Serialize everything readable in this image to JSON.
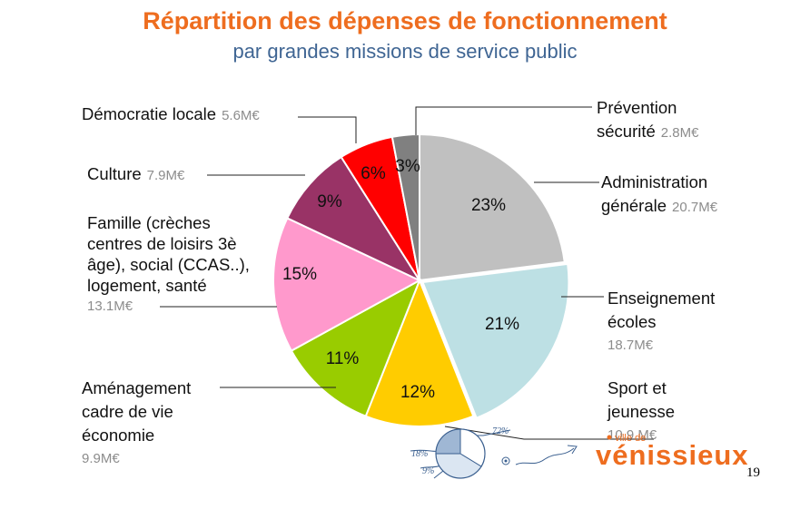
{
  "title": "Répartition des dépenses de fonctionnement",
  "subtitle": "par grandes missions de service public",
  "colors": {
    "title": "#ee6d1f",
    "subtitle": "#3f6593",
    "logo": "#ee6d1f"
  },
  "chart_data": {
    "type": "pie",
    "start_angle_deg": 0,
    "direction": "clockwise",
    "slices": [
      {
        "pct": 23,
        "pct_label": "23%",
        "color": "#c0c0c0",
        "lines": [
          "Administration",
          "générale"
        ],
        "amount": "20.7M€"
      },
      {
        "pct": 21,
        "pct_label": "21%",
        "color": "#bde0e4",
        "lines": [
          "Enseignement",
          "écoles"
        ],
        "amount": "18.7M€"
      },
      {
        "pct": 12,
        "pct_label": "12%",
        "color": "#ffcc00",
        "lines": [
          "Sport et",
          "jeunesse"
        ],
        "amount": "10.9 M€"
      },
      {
        "pct": 11,
        "pct_label": "11%",
        "color": "#99cc00",
        "lines": [
          "Aménagement",
          "cadre de vie",
          "économie"
        ],
        "amount": "9.9M€"
      },
      {
        "pct": 15,
        "pct_label": "15%",
        "color": "#ff99cc",
        "lines": [
          "Famille (crèches",
          "centres de loisirs 3è",
          "âge), social (CCAS..),",
          "logement, santé"
        ],
        "amount": "13.1M€"
      },
      {
        "pct": 9,
        "pct_label": "9%",
        "color": "#993366",
        "lines": [
          "Culture"
        ],
        "amount": "7.9M€"
      },
      {
        "pct": 6,
        "pct_label": "6%",
        "color": "#ff0000",
        "lines": [
          "Démocratie locale"
        ],
        "amount": "5.6M€"
      },
      {
        "pct": 3,
        "pct_label": "3%",
        "color": "#808080",
        "lines": [
          "Prévention",
          "sécurité"
        ],
        "amount": "2.8M€"
      }
    ]
  },
  "logo": {
    "small_text": "ville de",
    "main_text": "vénissieux"
  },
  "sketch_labels": [
    "72%",
    "18%",
    "9%"
  ],
  "page_number": "19"
}
